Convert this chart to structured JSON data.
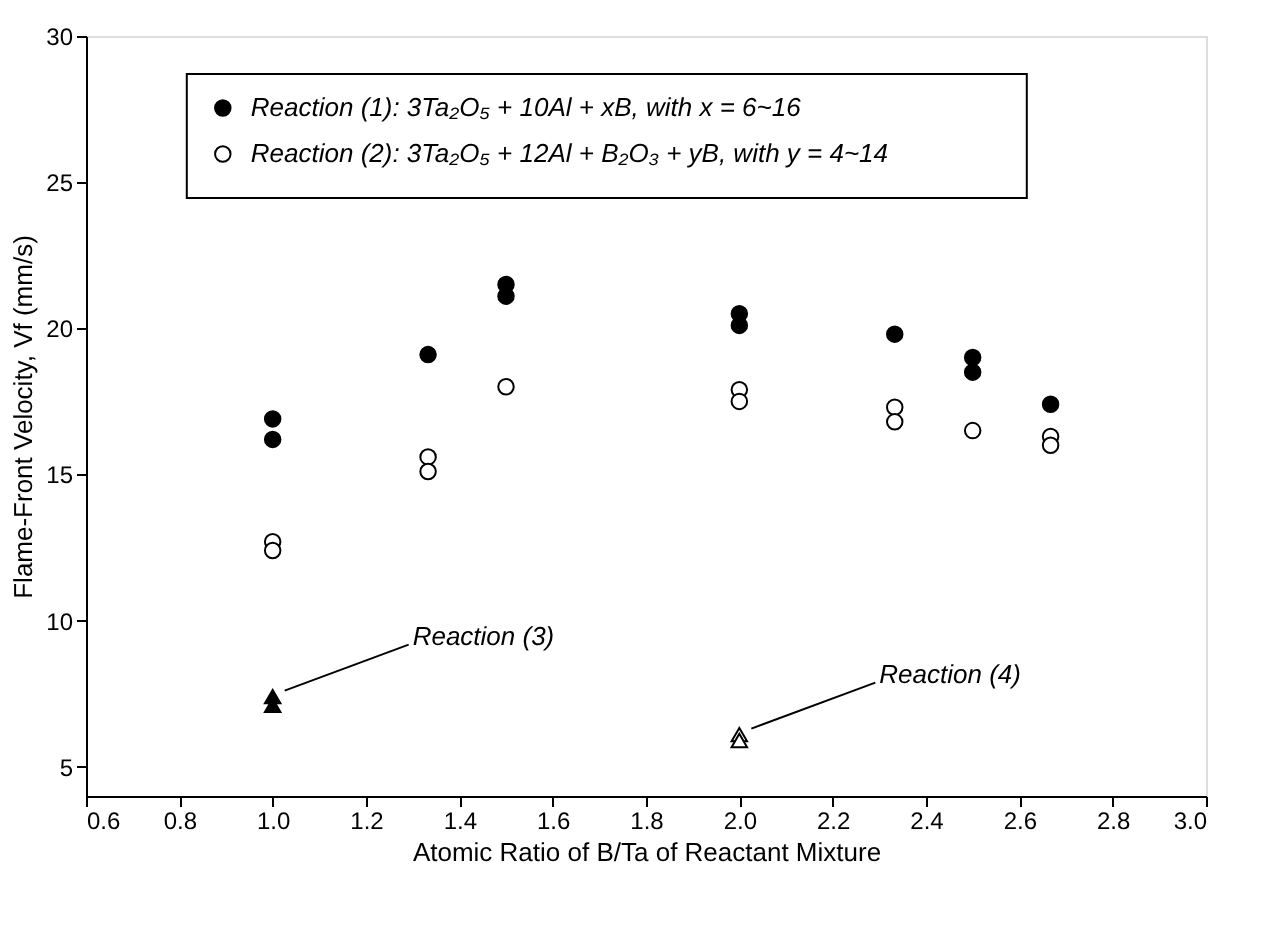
{
  "chart_data": {
    "type": "scatter",
    "xlabel": "Atomic Ratio of B/Ta of Reactant Mixture",
    "ylabel": "Flame-Front Velocity, Vf (mm/s)",
    "xlim": [
      0.6,
      3.0
    ],
    "xticks": [
      0.6,
      0.8,
      {
        "value": 1.0,
        "label": "1.0"
      },
      1.2,
      1.4,
      1.6,
      1.8,
      {
        "value": 2.0,
        "label": "2.0"
      },
      2.2,
      2.4,
      2.6,
      2.8,
      {
        "value": 3.0,
        "label": "3.0"
      }
    ],
    "ylim": [
      4,
      30
    ],
    "yticks": [
      5,
      10,
      15,
      20,
      25,
      30
    ],
    "grid": false,
    "legend": "top",
    "series": [
      {
        "name": "Reaction (1): 3Ta₂O₅ + 10Al + xB, with x = 6~16",
        "color": "#000000",
        "marker": "circle",
        "x": [
          1.0,
          1.0,
          1.333,
          1.5,
          1.5,
          2.0,
          2.0,
          2.333,
          2.5,
          2.5,
          2.667
        ],
        "values": [
          16.9,
          16.2,
          19.1,
          21.5,
          21.1,
          20.5,
          20.1,
          19.8,
          19.0,
          18.5,
          17.4
        ]
      },
      {
        "name": "Reaction (2): 3Ta₂O₅ + 12Al + B₂O₃ + yB, with y = 4~14",
        "color": "#ffffff",
        "marker": "circle",
        "x": [
          1.0,
          1.0,
          1.333,
          1.333,
          1.5,
          2.0,
          2.0,
          2.333,
          2.333,
          2.5,
          2.667,
          2.667
        ],
        "values": [
          12.7,
          12.4,
          15.6,
          15.1,
          18.0,
          17.9,
          17.5,
          17.3,
          16.8,
          16.5,
          16.3,
          16.0
        ]
      },
      {
        "color": "#000000",
        "marker": "triangle",
        "x": [
          1.0,
          1.0
        ],
        "values": [
          7.4,
          7.1
        ]
      },
      {
        "color": "#ffffff",
        "marker": "triangle",
        "x": [
          2.0,
          2.0
        ],
        "values": [
          6.1,
          5.9
        ]
      }
    ],
    "annotations": [
      {
        "text": "Reaction (3)",
        "x": 1.0,
        "y": 7.4
      },
      {
        "text": "Reaction (4)",
        "x": 2.0,
        "y": 6.1
      }
    ]
  }
}
